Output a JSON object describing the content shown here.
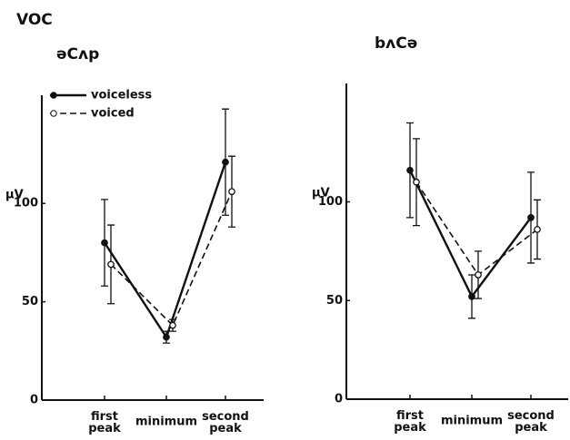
{
  "title": "VOC",
  "chart_data": [
    {
      "type": "line",
      "title": "əCʌp",
      "y_label": "µV",
      "categories": [
        "first peak",
        "minimum",
        "second peak"
      ],
      "ylim": [
        0,
        155
      ],
      "yticks": [
        0,
        50,
        100
      ],
      "legend": "upper left",
      "series": [
        {
          "name": "voiceless",
          "color": "#111111",
          "dash": false,
          "marker": "filled",
          "values": [
            80,
            32,
            121
          ],
          "errors": [
            22,
            3,
            27
          ]
        },
        {
          "name": "voiced",
          "color": "#111111",
          "dash": true,
          "marker": "open",
          "values": [
            69,
            38,
            106
          ],
          "errors": [
            20,
            3,
            18
          ]
        }
      ]
    },
    {
      "type": "line",
      "title": "bʌCə",
      "y_label": "µV",
      "categories": [
        "first peak",
        "minimum",
        "second peak"
      ],
      "ylim": [
        0,
        160
      ],
      "yticks": [
        0,
        50,
        100
      ],
      "series": [
        {
          "color": "#111111",
          "dash": false,
          "marker": "filled",
          "values": [
            116,
            52,
            92
          ],
          "errors": [
            24,
            11,
            23
          ]
        },
        {
          "color": "#111111",
          "dash": true,
          "marker": "open",
          "values": [
            110,
            63,
            86
          ],
          "errors": [
            22,
            12,
            15
          ]
        }
      ]
    }
  ]
}
